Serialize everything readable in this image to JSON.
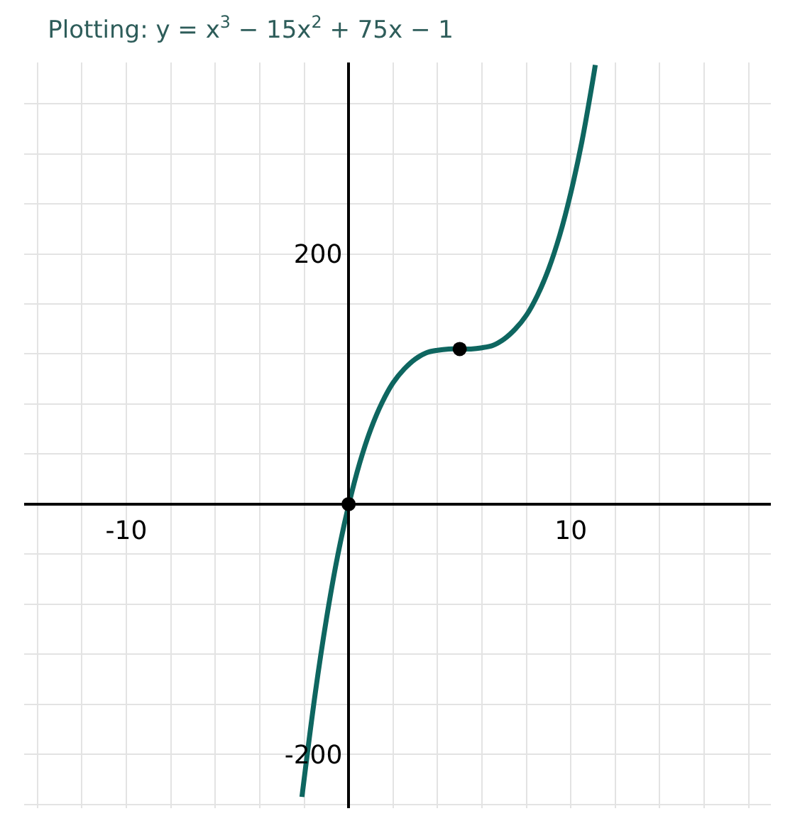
{
  "chart_data": {
    "type": "line",
    "title": "Plotting: y = x$^{3}$ − 15x$^{2}$ + 75x − 1",
    "series": [
      {
        "type": "line",
        "color": "#0e6660",
        "marker": "none",
        "x": [
          -2.1,
          -1.5,
          -1,
          -0.5,
          0,
          0.5,
          1,
          1.5,
          2,
          2.5,
          3,
          3.5,
          4,
          4.5,
          5,
          5.5,
          6,
          6.5,
          7,
          7.5,
          8,
          8.5,
          9,
          9.5,
          10,
          10.5,
          11,
          11.1
        ],
        "values": [
          -234,
          -151,
          -92,
          -42,
          -1,
          33,
          60,
          81,
          97,
          108,
          116,
          121,
          123,
          124,
          124,
          124,
          125,
          127,
          132,
          140,
          151,
          167,
          188,
          215,
          249,
          290,
          340,
          351
        ]
      },
      {
        "type": "scatter",
        "color": "#000000",
        "marker": "circle",
        "x": [
          0,
          5
        ],
        "values": [
          0,
          124
        ]
      }
    ],
    "xlim": [
      -14.6,
      19
    ],
    "ylim": [
      -243,
      353
    ],
    "xticks": [
      {
        "value": -14,
        "label": null
      },
      {
        "value": -12,
        "label": null
      },
      {
        "value": -10,
        "label": "-10"
      },
      {
        "value": -8,
        "label": null
      },
      {
        "value": -6,
        "label": null
      },
      {
        "value": -4,
        "label": null
      },
      {
        "value": -2,
        "label": null
      },
      {
        "value": 0,
        "label": null
      },
      {
        "value": 2,
        "label": null
      },
      {
        "value": 4,
        "label": null
      },
      {
        "value": 6,
        "label": null
      },
      {
        "value": 8,
        "label": null
      },
      {
        "value": 10,
        "label": "10"
      },
      {
        "value": 12,
        "label": null
      },
      {
        "value": 14,
        "label": null
      },
      {
        "value": 16,
        "label": null
      },
      {
        "value": 18,
        "label": null
      }
    ],
    "yticks": [
      {
        "value": -240,
        "label": null
      },
      {
        "value": -200,
        "label": "-200"
      },
      {
        "value": -160,
        "label": null
      },
      {
        "value": -120,
        "label": null
      },
      {
        "value": -80,
        "label": null
      },
      {
        "value": -40,
        "label": null
      },
      {
        "value": 0,
        "label": null
      },
      {
        "value": 40,
        "label": null
      },
      {
        "value": 80,
        "label": null
      },
      {
        "value": 120,
        "label": null
      },
      {
        "value": 160,
        "label": null
      },
      {
        "value": 200,
        "label": "200"
      },
      {
        "value": 240,
        "label": null
      },
      {
        "value": 280,
        "label": null
      },
      {
        "value": 320,
        "label": null
      }
    ],
    "grid": true
  }
}
